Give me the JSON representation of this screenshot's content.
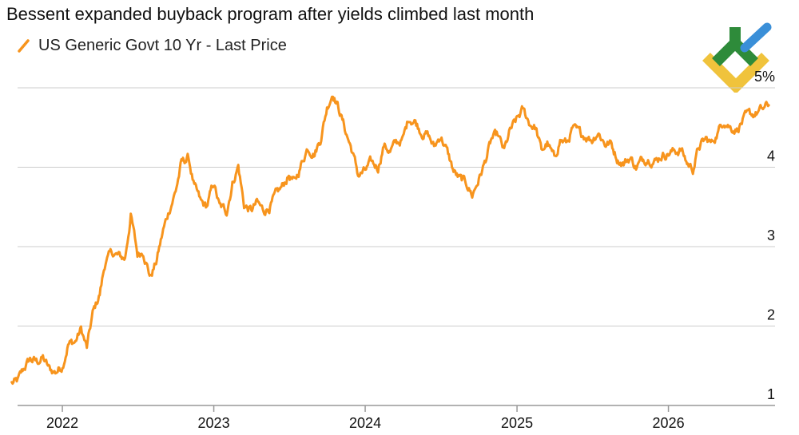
{
  "header": {
    "title": "Bessent expanded buyback program after yields climbed last month"
  },
  "legend": {
    "series_label": "US Generic Govt 10 Yr - Last Price"
  },
  "logo": {
    "icon": "leaf-chevron-logo",
    "colors": [
      "#2e8b3a",
      "#3a8fd8",
      "#f0c33c"
    ]
  },
  "colors": {
    "series": "#f7941d",
    "grid": "#cccccc",
    "axis": "#999999",
    "text": "#111111"
  },
  "chart_data": {
    "type": "line",
    "title": "Bessent expanded buyback program after yields climbed last month",
    "xlabel": "",
    "ylabel": "",
    "ylim": [
      1,
      5
    ],
    "xlim": [
      "2021-09-15",
      "2026-09-15"
    ],
    "y_ticks": [
      1,
      2,
      3,
      4,
      5
    ],
    "y_tick_labels": [
      "1",
      "2",
      "3",
      "4",
      "5%"
    ],
    "x_ticks": [
      "2022",
      "2023",
      "2024",
      "2025",
      "2026"
    ],
    "grid": "horizontal",
    "legend_position": "top-left",
    "series": [
      {
        "name": "US Generic Govt 10 Yr - Last Price",
        "color": "#f7941d",
        "points": [
          [
            "2021-09-01",
            1.28
          ],
          [
            "2021-09-15",
            1.3
          ],
          [
            "2021-10-01",
            1.47
          ],
          [
            "2021-10-15",
            1.58
          ],
          [
            "2021-11-01",
            1.55
          ],
          [
            "2021-11-15",
            1.6
          ],
          [
            "2021-12-01",
            1.45
          ],
          [
            "2021-12-15",
            1.42
          ],
          [
            "2022-01-01",
            1.5
          ],
          [
            "2022-01-15",
            1.78
          ],
          [
            "2022-02-01",
            1.8
          ],
          [
            "2022-02-15",
            1.96
          ],
          [
            "2022-03-01",
            1.72
          ],
          [
            "2022-03-15",
            2.15
          ],
          [
            "2022-04-01",
            2.4
          ],
          [
            "2022-04-15",
            2.82
          ],
          [
            "2022-05-01",
            2.92
          ],
          [
            "2022-05-15",
            2.88
          ],
          [
            "2022-06-01",
            2.85
          ],
          [
            "2022-06-15",
            3.4
          ],
          [
            "2022-07-01",
            2.9
          ],
          [
            "2022-07-15",
            2.95
          ],
          [
            "2022-08-01",
            2.62
          ],
          [
            "2022-08-15",
            2.8
          ],
          [
            "2022-09-01",
            3.2
          ],
          [
            "2022-09-15",
            3.45
          ],
          [
            "2022-10-01",
            3.7
          ],
          [
            "2022-10-15",
            4.05
          ],
          [
            "2022-11-01",
            4.12
          ],
          [
            "2022-11-15",
            3.75
          ],
          [
            "2022-12-01",
            3.55
          ],
          [
            "2022-12-15",
            3.5
          ],
          [
            "2023-01-01",
            3.8
          ],
          [
            "2023-01-15",
            3.5
          ],
          [
            "2023-02-01",
            3.45
          ],
          [
            "2023-02-15",
            3.8
          ],
          [
            "2023-03-01",
            4.02
          ],
          [
            "2023-03-15",
            3.52
          ],
          [
            "2023-04-01",
            3.45
          ],
          [
            "2023-04-15",
            3.55
          ],
          [
            "2023-05-01",
            3.45
          ],
          [
            "2023-05-15",
            3.5
          ],
          [
            "2023-06-01",
            3.65
          ],
          [
            "2023-06-15",
            3.75
          ],
          [
            "2023-07-01",
            3.9
          ],
          [
            "2023-07-15",
            3.8
          ],
          [
            "2023-08-01",
            4.05
          ],
          [
            "2023-08-15",
            4.25
          ],
          [
            "2023-09-01",
            4.18
          ],
          [
            "2023-09-15",
            4.35
          ],
          [
            "2023-10-01",
            4.75
          ],
          [
            "2023-10-15",
            4.95
          ],
          [
            "2023-11-01",
            4.7
          ],
          [
            "2023-11-15",
            4.45
          ],
          [
            "2023-12-01",
            4.2
          ],
          [
            "2023-12-15",
            3.9
          ],
          [
            "2024-01-01",
            3.95
          ],
          [
            "2024-01-15",
            4.05
          ],
          [
            "2024-02-01",
            4.0
          ],
          [
            "2024-02-15",
            4.28
          ],
          [
            "2024-03-01",
            4.2
          ],
          [
            "2024-03-15",
            4.3
          ],
          [
            "2024-04-01",
            4.35
          ],
          [
            "2024-04-15",
            4.62
          ],
          [
            "2024-05-01",
            4.58
          ],
          [
            "2024-05-15",
            4.45
          ],
          [
            "2024-06-01",
            4.4
          ],
          [
            "2024-06-15",
            4.25
          ],
          [
            "2024-07-01",
            4.4
          ],
          [
            "2024-07-15",
            4.22
          ],
          [
            "2024-08-01",
            3.95
          ],
          [
            "2024-08-15",
            3.85
          ],
          [
            "2024-09-01",
            3.8
          ],
          [
            "2024-09-15",
            3.65
          ],
          [
            "2024-10-01",
            3.85
          ],
          [
            "2024-10-15",
            4.05
          ],
          [
            "2024-11-01",
            4.35
          ],
          [
            "2024-11-15",
            4.4
          ],
          [
            "2024-12-01",
            4.2
          ],
          [
            "2024-12-15",
            4.45
          ],
          [
            "2025-01-01",
            4.6
          ],
          [
            "2025-01-15",
            4.72
          ],
          [
            "2025-02-01",
            4.55
          ],
          [
            "2025-02-15",
            4.5
          ],
          [
            "2025-03-01",
            4.2
          ],
          [
            "2025-03-15",
            4.3
          ],
          [
            "2025-04-01",
            4.1
          ],
          [
            "2025-04-15",
            4.35
          ],
          [
            "2025-05-01",
            4.3
          ],
          [
            "2025-05-15",
            4.48
          ],
          [
            "2025-06-01",
            4.42
          ],
          [
            "2025-06-15",
            4.4
          ],
          [
            "2025-07-01",
            4.35
          ],
          [
            "2025-07-15",
            4.45
          ],
          [
            "2025-08-01",
            4.3
          ],
          [
            "2025-08-15",
            4.3
          ],
          [
            "2025-09-01",
            4.1
          ],
          [
            "2025-09-15",
            4.05
          ],
          [
            "2025-10-01",
            4.12
          ],
          [
            "2025-10-15",
            4.0
          ],
          [
            "2025-11-01",
            4.1
          ],
          [
            "2025-11-15",
            4.12
          ],
          [
            "2025-12-01",
            4.08
          ],
          [
            "2025-12-15",
            4.15
          ],
          [
            "2026-01-01",
            4.18
          ],
          [
            "2026-01-15",
            4.2
          ],
          [
            "2026-02-01",
            4.22
          ],
          [
            "2026-02-15",
            4.05
          ],
          [
            "2026-03-01",
            3.98
          ],
          [
            "2026-03-15",
            4.25
          ],
          [
            "2026-04-01",
            4.35
          ],
          [
            "2026-04-15",
            4.3
          ],
          [
            "2026-05-01",
            4.45
          ],
          [
            "2026-05-15",
            4.6
          ],
          [
            "2026-06-01",
            4.5
          ],
          [
            "2026-06-15",
            4.48
          ],
          [
            "2026-07-01",
            4.6
          ],
          [
            "2026-07-15",
            4.65
          ],
          [
            "2026-08-01",
            4.68
          ],
          [
            "2026-08-15",
            4.72
          ],
          [
            "2026-08-31",
            4.78
          ]
        ]
      }
    ]
  }
}
